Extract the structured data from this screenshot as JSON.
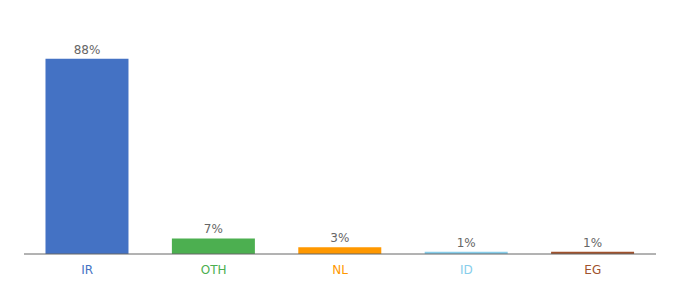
{
  "chart_data": {
    "type": "bar",
    "categories": [
      "IR",
      "OTH",
      "NL",
      "ID",
      "EG"
    ],
    "values": [
      88,
      7,
      3,
      1,
      1
    ],
    "value_labels": [
      "88%",
      "7%",
      "3%",
      "1%",
      "1%"
    ],
    "colors": [
      "#4472c4",
      "#4caf50",
      "#ff9800",
      "#87ceeb",
      "#a0522d"
    ],
    "ylim": [
      0,
      100
    ],
    "grid": false,
    "data_labels": true,
    "tick_labels": "x"
  }
}
